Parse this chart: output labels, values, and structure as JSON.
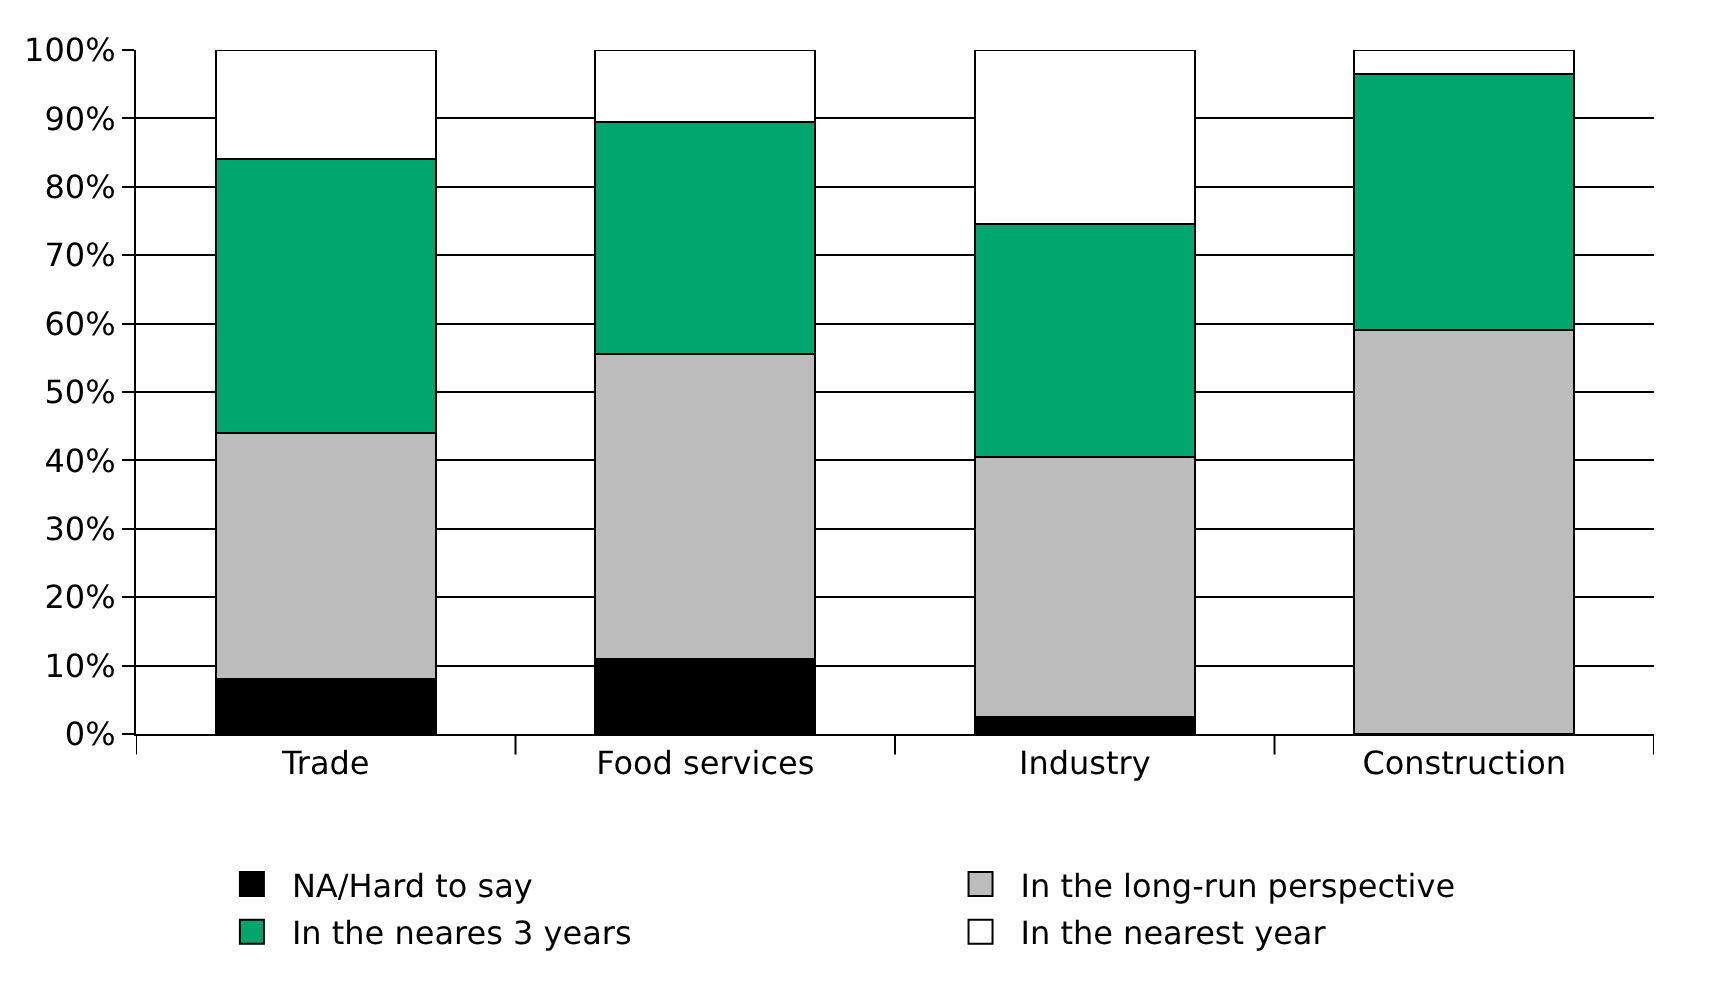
{
  "chart_data": {
    "type": "bar",
    "stacked": true,
    "categories": [
      "Trade",
      "Food services",
      "Industry",
      "Construction"
    ],
    "series": [
      {
        "name": "NA/Hard to say",
        "color": "#000000",
        "values": [
          8,
          11,
          2.5,
          0
        ]
      },
      {
        "name": "In the long-run perspective",
        "color": "#bcbcbc",
        "values": [
          36,
          44.5,
          38,
          59
        ]
      },
      {
        "name": "In the neares 3 years",
        "color": "#00a66e",
        "values": [
          40,
          34,
          34,
          37.5
        ]
      },
      {
        "name": "In the nearest year",
        "color": "#ffffff",
        "values": [
          16,
          10.5,
          25.5,
          3.5
        ]
      }
    ],
    "ylim": [
      0,
      100
    ],
    "yticks": [
      {
        "value": 0,
        "label": "0%"
      },
      {
        "value": 10,
        "label": "10%"
      },
      {
        "value": 20,
        "label": "20%"
      },
      {
        "value": 30,
        "label": "30%"
      },
      {
        "value": 40,
        "label": "40%"
      },
      {
        "value": 50,
        "label": "50%"
      },
      {
        "value": 60,
        "label": "60%"
      },
      {
        "value": 70,
        "label": "70%"
      },
      {
        "value": 80,
        "label": "80%"
      },
      {
        "value": 90,
        "label": "90%"
      },
      {
        "value": 100,
        "label": "100%"
      }
    ],
    "grid": "y",
    "legend": "bottom"
  }
}
